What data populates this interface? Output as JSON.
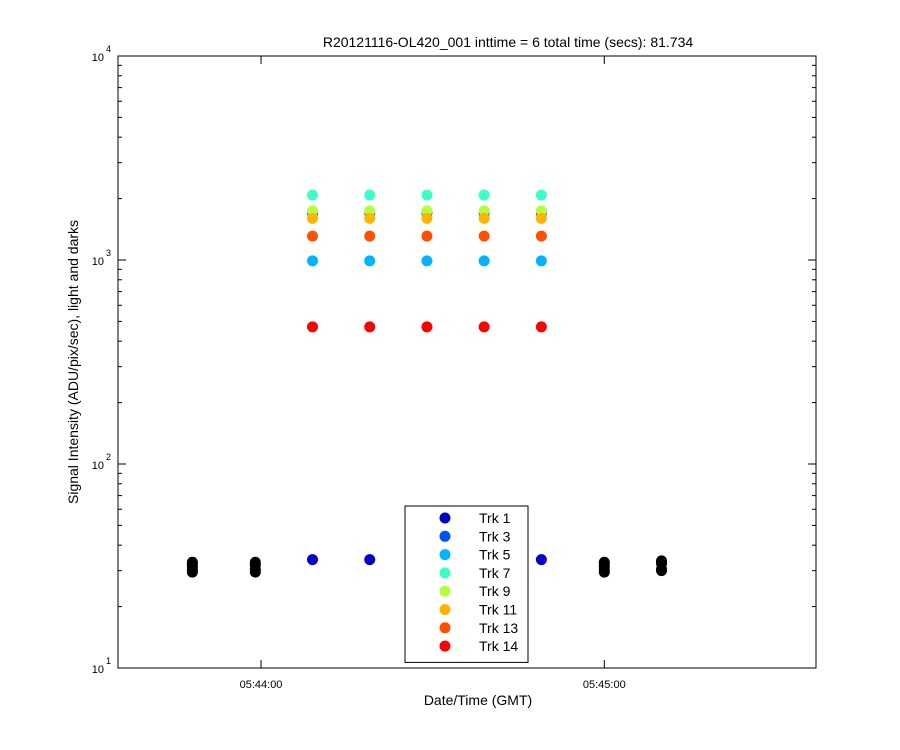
{
  "chart_data": {
    "type": "scatter",
    "title": "R20121116-OL420_001 inttime = 6 total time (secs): 81.734",
    "xlabel": "Date/Time (GMT)",
    "ylabel": "Signal Intensity (ADU/pix/sec), light and darks",
    "y_scale": "log",
    "ylim": [
      10,
      10000
    ],
    "xlim": [
      "05:43:35",
      "05:45:37"
    ],
    "x_ticks": [
      {
        "t": "05:44:00",
        "label": "05:44:00"
      },
      {
        "t": "05:45:00",
        "label": "05:45:00"
      }
    ],
    "y_ticks": [
      {
        "value": 10,
        "base": "10",
        "exp": "1"
      },
      {
        "value": 100,
        "base": "10",
        "exp": "2"
      },
      {
        "value": 1000,
        "base": "10",
        "exp": "3"
      },
      {
        "value": 10000,
        "base": "10",
        "exp": "4"
      }
    ],
    "grid": false,
    "legend_position": "bottom-center",
    "light_times": [
      "05:44:09",
      "05:44:19",
      "05:44:29",
      "05:44:39",
      "05:44:49"
    ],
    "series": [
      {
        "name": "Trk 1",
        "color": "#0000c8",
        "values": [
          34,
          34,
          34,
          34,
          34
        ]
      },
      {
        "name": "Trk 3",
        "color": "#0050ff",
        "values": [
          1700,
          1700,
          1700,
          1700,
          1700
        ]
      },
      {
        "name": "Trk 5",
        "color": "#00b4ff",
        "values": [
          990,
          990,
          990,
          990,
          990
        ]
      },
      {
        "name": "Trk 7",
        "color": "#3cffc8",
        "values": [
          2080,
          2080,
          2080,
          2080,
          2080
        ]
      },
      {
        "name": "Trk 9",
        "color": "#b4ff3c",
        "values": [
          1740,
          1740,
          1740,
          1740,
          1740
        ]
      },
      {
        "name": "Trk 11",
        "color": "#ffb400",
        "values": [
          1600,
          1600,
          1600,
          1600,
          1600
        ]
      },
      {
        "name": "Trk 13",
        "color": "#ff5000",
        "values": [
          1310,
          1310,
          1310,
          1310,
          1310
        ]
      },
      {
        "name": "Trk 14",
        "color": "#ff0000",
        "values": [
          470,
          470,
          470,
          470,
          470
        ]
      }
    ],
    "darks": {
      "color": "#000000",
      "times": [
        "05:43:48",
        "05:43:59",
        "05:45:00",
        "05:45:10"
      ],
      "values": [
        [
          29.5,
          30.5,
          31.5,
          32.5,
          33
        ],
        [
          29.5,
          30.5,
          32,
          33
        ],
        [
          29.5,
          30.5,
          31.5,
          32.5,
          33
        ],
        [
          30,
          30.5,
          32.5,
          33.5
        ]
      ]
    }
  }
}
